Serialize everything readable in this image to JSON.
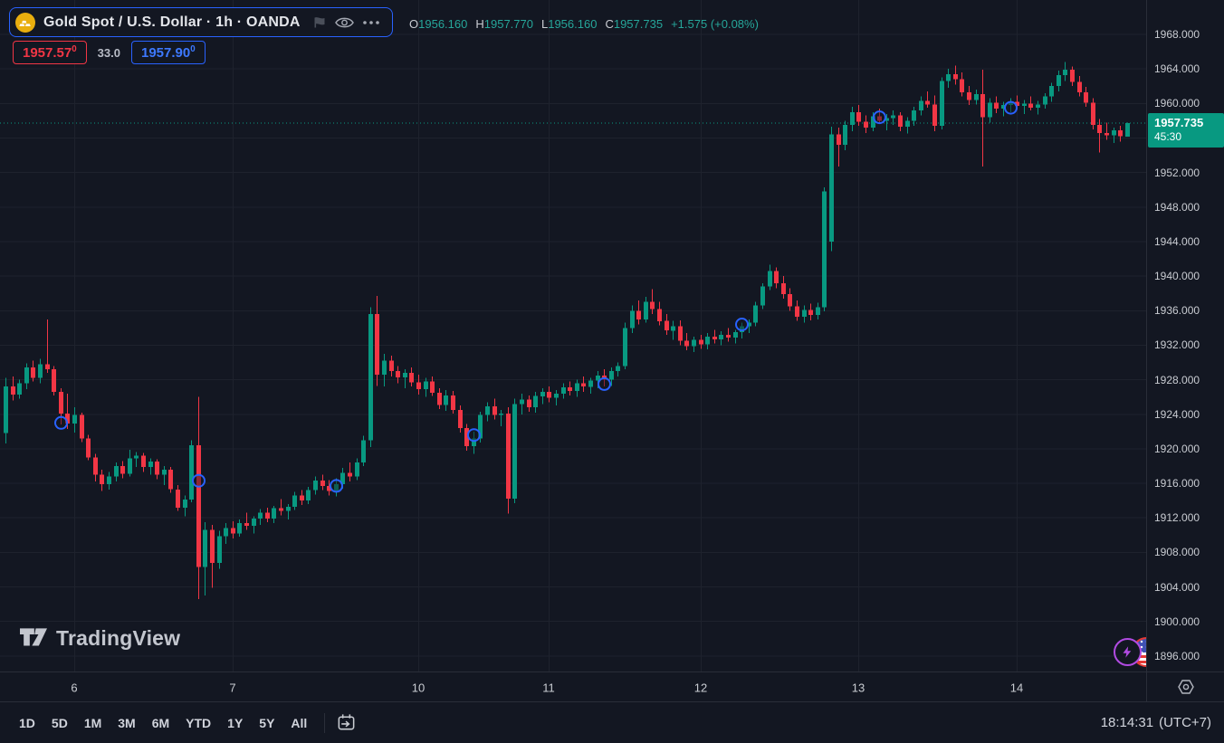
{
  "header": {
    "symbol_title": "Gold Spot / U.S. Dollar · 1h · OANDA",
    "ohlc": {
      "o_label": "O",
      "o": "1956.160",
      "h_label": "H",
      "h": "1957.770",
      "l_label": "L",
      "l": "1956.160",
      "c_label": "C",
      "c": "1957.735",
      "change": "+1.575 (+0.08%)"
    },
    "bid": "1957.57",
    "bid_sup": "0",
    "spread": "33.0",
    "ask": "1957.90",
    "ask_sup": "0"
  },
  "watermark": "TradingView",
  "toolbar": {
    "ranges": [
      "1D",
      "5D",
      "1M",
      "3M",
      "6M",
      "YTD",
      "1Y",
      "5Y",
      "All"
    ],
    "clock": "18:14:31",
    "timezone": "(UTC+7)"
  },
  "chart_data": {
    "type": "candlestick",
    "symbol": "Gold Spot / U.S. Dollar",
    "interval": "1h",
    "exchange": "OANDA",
    "last_price": 1957.735,
    "last_price_text": "1957.735",
    "countdown": "45:30",
    "ylim": [
      1894.2,
      1972.0
    ],
    "price_ticks": [
      1968,
      1964,
      1960,
      1956,
      1952,
      1948,
      1944,
      1940,
      1936,
      1932,
      1928,
      1924,
      1920,
      1916,
      1912,
      1908,
      1904,
      1900,
      1896
    ],
    "time_ticks": [
      {
        "label": "6",
        "index": 10
      },
      {
        "label": "7",
        "index": 33
      },
      {
        "label": "10",
        "index": 60
      },
      {
        "label": "11",
        "index": 79
      },
      {
        "label": "12",
        "index": 101
      },
      {
        "label": "13",
        "index": 124
      },
      {
        "label": "14",
        "index": 147
      }
    ],
    "colors": {
      "up": "#089981",
      "down": "#f23645",
      "grid": "#1e222d",
      "marker": "#2962ff",
      "last_line": "#089981",
      "last_label_bg": "#089981",
      "accent": "#2962ff"
    },
    "markers": [
      {
        "index": 8,
        "price": 1923.0
      },
      {
        "index": 28,
        "price": 1916.3
      },
      {
        "index": 48,
        "price": 1915.7
      },
      {
        "index": 68,
        "price": 1921.6
      },
      {
        "index": 87,
        "price": 1927.5
      },
      {
        "index": 107,
        "price": 1934.4
      },
      {
        "index": 127,
        "price": 1958.4
      },
      {
        "index": 146,
        "price": 1959.5
      }
    ],
    "candles": [
      [
        1921.8,
        1928.2,
        1920.6,
        1927.2
      ],
      [
        1927.2,
        1928.4,
        1925.6,
        1926.3
      ],
      [
        1926.3,
        1928.0,
        1925.8,
        1927.6
      ],
      [
        1927.6,
        1929.9,
        1926.9,
        1929.4
      ],
      [
        1929.4,
        1930.2,
        1927.8,
        1928.2
      ],
      [
        1928.2,
        1930.4,
        1927.6,
        1929.8
      ],
      [
        1929.8,
        1935.0,
        1928.8,
        1929.2
      ],
      [
        1929.2,
        1929.6,
        1926.2,
        1926.6
      ],
      [
        1926.6,
        1927.0,
        1922.8,
        1924.1
      ],
      [
        1924.1,
        1926.4,
        1922.3,
        1922.9
      ],
      [
        1922.9,
        1924.8,
        1921.9,
        1923.9
      ],
      [
        1923.9,
        1924.2,
        1920.8,
        1921.2
      ],
      [
        1921.2,
        1921.6,
        1918.7,
        1919.0
      ],
      [
        1919.0,
        1919.4,
        1916.2,
        1917.0
      ],
      [
        1917.0,
        1917.6,
        1915.1,
        1915.9
      ],
      [
        1915.9,
        1917.3,
        1915.3,
        1916.8
      ],
      [
        1916.8,
        1918.4,
        1916.2,
        1918.0
      ],
      [
        1918.0,
        1918.6,
        1916.6,
        1917.1
      ],
      [
        1917.1,
        1919.9,
        1916.8,
        1918.9
      ],
      [
        1918.9,
        1919.6,
        1917.9,
        1919.2
      ],
      [
        1919.2,
        1919.5,
        1917.3,
        1917.9
      ],
      [
        1917.9,
        1918.9,
        1917.0,
        1918.5
      ],
      [
        1918.5,
        1918.8,
        1916.5,
        1917.0
      ],
      [
        1917.0,
        1918.0,
        1915.8,
        1917.6
      ],
      [
        1917.6,
        1917.9,
        1914.9,
        1915.3
      ],
      [
        1915.3,
        1915.8,
        1912.8,
        1913.2
      ],
      [
        1913.2,
        1914.6,
        1912.2,
        1914.1
      ],
      [
        1914.1,
        1921.0,
        1913.8,
        1920.4
      ],
      [
        1920.4,
        1926.0,
        1902.6,
        1906.3
      ],
      [
        1906.3,
        1911.5,
        1903.0,
        1910.6
      ],
      [
        1910.6,
        1911.2,
        1903.9,
        1906.8
      ],
      [
        1906.8,
        1910.5,
        1906.1,
        1909.9
      ],
      [
        1909.9,
        1911.4,
        1909.0,
        1910.8
      ],
      [
        1910.8,
        1911.6,
        1909.6,
        1910.2
      ],
      [
        1910.2,
        1911.8,
        1909.8,
        1911.4
      ],
      [
        1911.4,
        1912.6,
        1910.6,
        1911.1
      ],
      [
        1911.1,
        1912.2,
        1910.2,
        1911.9
      ],
      [
        1911.9,
        1913.0,
        1911.2,
        1912.6
      ],
      [
        1912.6,
        1913.2,
        1911.5,
        1911.9
      ],
      [
        1911.9,
        1913.4,
        1911.4,
        1913.1
      ],
      [
        1913.1,
        1914.2,
        1912.3,
        1912.8
      ],
      [
        1912.8,
        1913.6,
        1911.8,
        1913.3
      ],
      [
        1913.3,
        1915.0,
        1912.9,
        1914.6
      ],
      [
        1914.6,
        1915.2,
        1913.5,
        1914.0
      ],
      [
        1914.0,
        1915.6,
        1913.6,
        1915.2
      ],
      [
        1915.2,
        1916.8,
        1914.7,
        1916.3
      ],
      [
        1916.3,
        1917.0,
        1915.2,
        1915.7
      ],
      [
        1915.7,
        1916.4,
        1914.6,
        1915.1
      ],
      [
        1915.1,
        1916.6,
        1914.5,
        1915.9
      ],
      [
        1915.9,
        1917.8,
        1915.4,
        1917.2
      ],
      [
        1917.2,
        1918.4,
        1916.2,
        1916.8
      ],
      [
        1916.8,
        1918.9,
        1916.4,
        1918.4
      ],
      [
        1918.4,
        1921.5,
        1918.0,
        1921.0
      ],
      [
        1921.0,
        1936.4,
        1920.2,
        1935.6
      ],
      [
        1935.6,
        1937.7,
        1927.3,
        1928.6
      ],
      [
        1928.6,
        1931.0,
        1927.2,
        1930.2
      ],
      [
        1930.2,
        1930.8,
        1928.4,
        1929.0
      ],
      [
        1929.0,
        1929.6,
        1927.6,
        1928.3
      ],
      [
        1928.3,
        1929.2,
        1927.0,
        1928.8
      ],
      [
        1928.8,
        1929.4,
        1927.2,
        1927.7
      ],
      [
        1927.7,
        1928.6,
        1926.3,
        1926.9
      ],
      [
        1926.9,
        1928.2,
        1926.0,
        1927.8
      ],
      [
        1927.8,
        1928.4,
        1926.1,
        1926.5
      ],
      [
        1926.5,
        1927.0,
        1924.6,
        1925.1
      ],
      [
        1925.1,
        1926.8,
        1924.4,
        1926.2
      ],
      [
        1926.2,
        1926.7,
        1924.1,
        1924.5
      ],
      [
        1924.5,
        1925.0,
        1921.9,
        1922.4
      ],
      [
        1922.4,
        1922.9,
        1919.8,
        1920.3
      ],
      [
        1920.3,
        1922.0,
        1919.4,
        1921.2
      ],
      [
        1921.2,
        1924.3,
        1920.7,
        1923.9
      ],
      [
        1923.9,
        1925.4,
        1923.2,
        1924.9
      ],
      [
        1924.9,
        1925.8,
        1923.4,
        1923.9
      ],
      [
        1923.9,
        1924.5,
        1922.6,
        1924.1
      ],
      [
        1924.1,
        1924.8,
        1912.5,
        1914.2
      ],
      [
        1914.2,
        1925.8,
        1913.7,
        1925.2
      ],
      [
        1925.2,
        1926.4,
        1924.0,
        1925.7
      ],
      [
        1925.7,
        1926.2,
        1924.3,
        1924.8
      ],
      [
        1924.8,
        1926.6,
        1924.2,
        1926.1
      ],
      [
        1926.1,
        1927.0,
        1925.2,
        1926.6
      ],
      [
        1926.6,
        1927.2,
        1925.4,
        1925.9
      ],
      [
        1925.9,
        1926.8,
        1925.0,
        1926.4
      ],
      [
        1926.4,
        1927.6,
        1925.8,
        1927.1
      ],
      [
        1927.1,
        1927.8,
        1926.2,
        1926.7
      ],
      [
        1926.7,
        1928.0,
        1926.0,
        1927.6
      ],
      [
        1927.6,
        1928.4,
        1926.6,
        1927.2
      ],
      [
        1927.2,
        1928.2,
        1926.4,
        1927.9
      ],
      [
        1927.9,
        1929.0,
        1927.0,
        1928.5
      ],
      [
        1928.5,
        1929.2,
        1927.2,
        1928.0
      ],
      [
        1928.0,
        1929.4,
        1927.3,
        1929.0
      ],
      [
        1929.0,
        1930.0,
        1928.4,
        1929.6
      ],
      [
        1929.6,
        1934.6,
        1929.2,
        1934.0
      ],
      [
        1934.0,
        1936.6,
        1933.4,
        1936.0
      ],
      [
        1936.0,
        1937.2,
        1934.4,
        1935.0
      ],
      [
        1935.0,
        1937.6,
        1934.6,
        1937.0
      ],
      [
        1937.0,
        1938.5,
        1935.6,
        1936.2
      ],
      [
        1936.2,
        1937.0,
        1934.3,
        1934.8
      ],
      [
        1934.8,
        1935.6,
        1933.2,
        1933.7
      ],
      [
        1933.7,
        1934.8,
        1932.6,
        1934.2
      ],
      [
        1934.2,
        1934.9,
        1932.0,
        1932.5
      ],
      [
        1932.5,
        1933.4,
        1931.4,
        1931.9
      ],
      [
        1931.9,
        1933.0,
        1931.2,
        1932.6
      ],
      [
        1932.6,
        1933.2,
        1931.6,
        1932.1
      ],
      [
        1932.1,
        1933.4,
        1931.5,
        1933.0
      ],
      [
        1933.0,
        1933.8,
        1932.2,
        1932.7
      ],
      [
        1932.7,
        1933.6,
        1932.0,
        1933.2
      ],
      [
        1933.2,
        1934.0,
        1932.4,
        1932.9
      ],
      [
        1932.9,
        1933.8,
        1932.2,
        1933.5
      ],
      [
        1933.5,
        1934.6,
        1932.8,
        1934.2
      ],
      [
        1934.2,
        1935.0,
        1933.4,
        1934.6
      ],
      [
        1934.6,
        1937.0,
        1934.2,
        1936.6
      ],
      [
        1936.6,
        1939.2,
        1936.2,
        1938.8
      ],
      [
        1938.8,
        1941.3,
        1938.4,
        1940.6
      ],
      [
        1940.6,
        1941.0,
        1938.6,
        1939.2
      ],
      [
        1939.2,
        1940.0,
        1937.4,
        1937.9
      ],
      [
        1937.9,
        1938.6,
        1936.0,
        1936.5
      ],
      [
        1936.5,
        1937.2,
        1934.8,
        1935.3
      ],
      [
        1935.3,
        1936.6,
        1934.6,
        1936.1
      ],
      [
        1936.1,
        1936.8,
        1934.9,
        1935.5
      ],
      [
        1935.5,
        1936.9,
        1935.0,
        1936.4
      ],
      [
        1936.4,
        1950.3,
        1935.9,
        1949.8
      ],
      [
        1944.0,
        1957.3,
        1942.9,
        1956.4
      ],
      [
        1956.4,
        1957.2,
        1952.7,
        1955.2
      ],
      [
        1955.2,
        1958.0,
        1954.6,
        1957.5
      ],
      [
        1957.5,
        1959.6,
        1956.8,
        1959.0
      ],
      [
        1959.0,
        1959.8,
        1957.4,
        1957.9
      ],
      [
        1957.9,
        1958.6,
        1956.6,
        1957.2
      ],
      [
        1957.2,
        1959.0,
        1956.8,
        1958.5
      ],
      [
        1958.5,
        1959.4,
        1957.6,
        1958.0
      ],
      [
        1958.0,
        1958.8,
        1956.9,
        1958.3
      ],
      [
        1958.3,
        1959.2,
        1957.5,
        1958.6
      ],
      [
        1958.6,
        1959.0,
        1956.8,
        1957.3
      ],
      [
        1957.3,
        1958.4,
        1956.5,
        1958.0
      ],
      [
        1958.0,
        1959.6,
        1957.4,
        1959.2
      ],
      [
        1959.2,
        1960.8,
        1958.6,
        1960.3
      ],
      [
        1960.3,
        1961.4,
        1959.5,
        1959.9
      ],
      [
        1959.9,
        1960.9,
        1956.8,
        1957.4
      ],
      [
        1957.4,
        1963.0,
        1957.0,
        1962.6
      ],
      [
        1962.6,
        1964.0,
        1961.8,
        1963.4
      ],
      [
        1963.4,
        1964.4,
        1962.2,
        1962.8
      ],
      [
        1962.8,
        1963.6,
        1960.8,
        1961.3
      ],
      [
        1961.3,
        1962.0,
        1959.8,
        1960.4
      ],
      [
        1960.4,
        1961.6,
        1959.9,
        1961.1
      ],
      [
        1961.1,
        1963.9,
        1952.7,
        1958.4
      ],
      [
        1958.4,
        1960.6,
        1957.8,
        1960.1
      ],
      [
        1960.1,
        1960.8,
        1958.9,
        1959.4
      ],
      [
        1959.4,
        1960.2,
        1958.5,
        1959.8
      ],
      [
        1959.8,
        1960.6,
        1959.0,
        1960.2
      ],
      [
        1960.2,
        1960.9,
        1959.3,
        1959.7
      ],
      [
        1959.7,
        1960.4,
        1958.8,
        1960.0
      ],
      [
        1960.0,
        1960.8,
        1959.2,
        1959.5
      ],
      [
        1959.5,
        1960.3,
        1958.7,
        1959.9
      ],
      [
        1959.9,
        1961.2,
        1959.4,
        1960.8
      ],
      [
        1960.8,
        1962.4,
        1960.2,
        1962.0
      ],
      [
        1962.0,
        1963.8,
        1961.4,
        1963.3
      ],
      [
        1963.3,
        1964.8,
        1962.6,
        1963.9
      ],
      [
        1963.9,
        1964.3,
        1962.0,
        1962.5
      ],
      [
        1962.5,
        1963.2,
        1960.8,
        1961.3
      ],
      [
        1961.3,
        1961.9,
        1959.6,
        1960.1
      ],
      [
        1960.1,
        1960.6,
        1957.0,
        1957.5
      ],
      [
        1957.5,
        1958.2,
        1954.3,
        1956.6
      ],
      [
        1956.6,
        1957.8,
        1955.8,
        1956.3
      ],
      [
        1956.3,
        1957.2,
        1955.4,
        1956.9
      ],
      [
        1956.9,
        1957.4,
        1955.6,
        1956.2
      ],
      [
        1956.16,
        1957.77,
        1956.16,
        1957.735
      ]
    ]
  }
}
